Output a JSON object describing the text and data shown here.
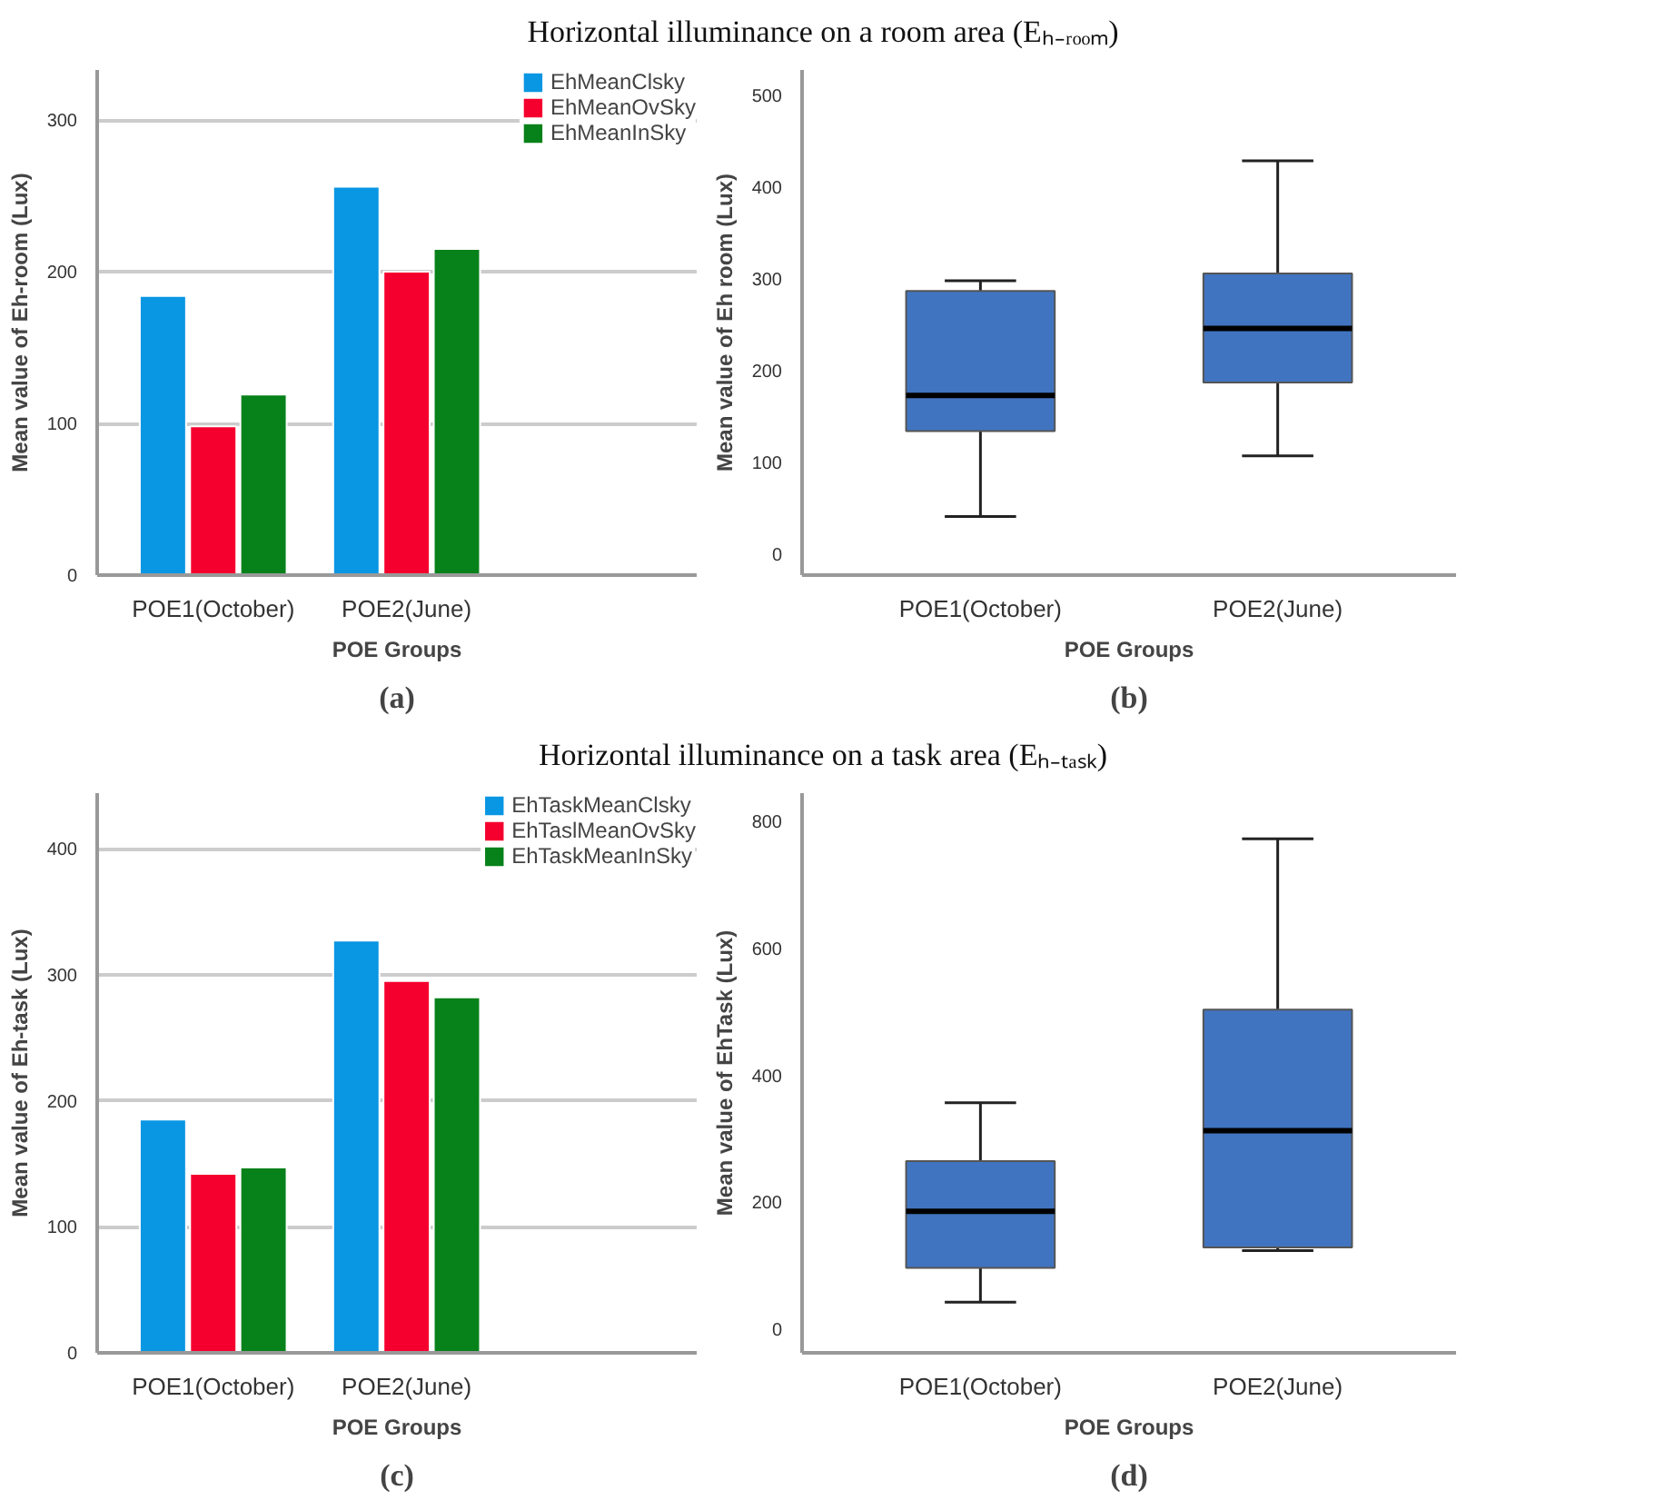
{
  "chart_data": [
    {
      "type": "other",
      "title": "Horizontal illuminance on a room area (Eₕ₋ᵣₒₒₘ)"
    },
    {
      "type": "bar",
      "xlabel": "POE Groups",
      "ylabel": "Mean value of Eh-room (Lux)",
      "categories": [
        "POE1(October)",
        "POE2(June)"
      ],
      "series": [
        {
          "name": "EhMeanClsky",
          "color": "#0996e3",
          "values": [
            184,
            256
          ]
        },
        {
          "name": "EhMeanOvSky",
          "color": "#f5002e",
          "values": [
            98,
            200
          ]
        },
        {
          "name": "EhMeanInSky",
          "color": "#07811a",
          "values": [
            119,
            215
          ]
        }
      ],
      "ylim": [
        0,
        333
      ],
      "yticks": [
        0,
        100,
        200,
        300
      ],
      "grid": "y",
      "legend": "top right",
      "annotations": [
        "(a)"
      ]
    },
    {
      "type": "box",
      "xlabel": "POE Groups",
      "ylabel": "Mean value of Eh room (Lux)",
      "categories": [
        "POE1(October)",
        "POE2(June)"
      ],
      "boxes": [
        {
          "low": 41,
          "q1": 134,
          "median": 173,
          "q3": 287,
          "high": 298
        },
        {
          "low": 107,
          "q1": 187,
          "median": 246,
          "q3": 306,
          "high": 429
        }
      ],
      "color": "#4174c0",
      "ylim": [
        -23,
        528
      ],
      "yticks": [
        0,
        100,
        200,
        300,
        400,
        500
      ],
      "annotations": [
        "(b)"
      ]
    },
    {
      "type": "other",
      "title": "Horizontal illuminance on a task area (Eₕ₋ₜₐₛₖ)"
    },
    {
      "type": "bar",
      "xlabel": "POE Groups",
      "ylabel": "Mean value of Eh-task (Lux)",
      "categories": [
        "POE1(October)",
        "POE2(June)"
      ],
      "series": [
        {
          "name": "EhTaskMeanClsky",
          "color": "#0996e3",
          "values": [
            185,
            327
          ]
        },
        {
          "name": "EhTaslMeanOvSky",
          "color": "#f5002e",
          "values": [
            142,
            295
          ]
        },
        {
          "name": "EhTaskMeanInSky",
          "color": "#07811a",
          "values": [
            147,
            282
          ]
        }
      ],
      "ylim": [
        0,
        444
      ],
      "yticks": [
        0,
        100,
        200,
        300,
        400
      ],
      "grid": "y",
      "legend": "top right",
      "annotations": [
        "(c)"
      ]
    },
    {
      "type": "box",
      "xlabel": "POE Groups",
      "ylabel": "Mean value of EhTask (Lux)",
      "categories": [
        "POE1(October)",
        "POE2(June)"
      ],
      "boxes": [
        {
          "low": 43,
          "q1": 97,
          "median": 186,
          "q3": 265,
          "high": 357
        },
        {
          "low": 124,
          "q1": 129,
          "median": 313,
          "q3": 504,
          "high": 773
        }
      ],
      "color": "#4174c0",
      "ylim": [
        -37,
        845
      ],
      "yticks": [
        0,
        200,
        400,
        600,
        800
      ],
      "annotations": [
        "(d)"
      ]
    }
  ]
}
